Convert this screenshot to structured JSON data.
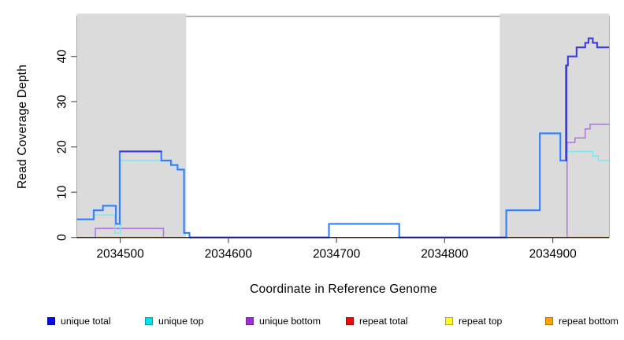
{
  "axes": {
    "x_label": "Coordinate in Reference Genome",
    "y_label": "Read Coverage Depth"
  },
  "chart_data": {
    "type": "line",
    "title": "",
    "xlabel": "Coordinate in Reference Genome",
    "ylabel": "Read Coverage Depth",
    "xlim": [
      2034460,
      2034952
    ],
    "ylim": [
      0,
      48
    ],
    "grid": false,
    "xticks": [
      2034500,
      2034600,
      2034700,
      2034800,
      2034900
    ],
    "yticks": [
      0,
      10,
      20,
      30,
      40
    ],
    "shade_color": "#DBDBDB",
    "shaded_regions": [
      {
        "from": 2034460,
        "to": 2034561
      },
      {
        "from": 2034851,
        "to": 2034952
      }
    ],
    "series": [
      {
        "name": "repeat top",
        "color": "#FFE81A",
        "width": 1.4,
        "xend": 2034952,
        "steps": [
          [
            2034460,
            0
          ]
        ]
      },
      {
        "name": "repeat total",
        "color": "#D84A63",
        "width": 1.4,
        "xend": 2034952,
        "steps": [
          [
            2034460,
            0
          ]
        ]
      },
      {
        "name": "repeat bottom",
        "color": "#FFA11C",
        "width": 1.6,
        "xend": 2034952,
        "steps": [
          [
            2034476,
            0
          ],
          [
            2034538,
            null
          ],
          [
            2034913,
            0
          ]
        ]
      },
      {
        "name": "unique bottom",
        "color": "#B173E3",
        "width": 1.5,
        "xend": 2034952,
        "steps": [
          [
            2034476,
            0
          ],
          [
            2034477,
            2
          ],
          [
            2034540,
            0
          ],
          [
            2034541,
            null
          ],
          [
            2034912.4,
            0
          ],
          [
            2034913.2,
            21
          ],
          [
            2034920.5,
            22
          ],
          [
            2034930,
            24
          ],
          [
            2034934.5,
            25
          ]
        ]
      },
      {
        "name": "unique top",
        "color": "#7FE6EF",
        "width": 1.5,
        "xend": 2034952,
        "steps": [
          [
            2034460,
            4
          ],
          [
            2034475.5,
            5
          ],
          [
            2034495,
            1
          ],
          [
            2034500,
            17
          ],
          [
            2034547,
            16
          ],
          [
            2034553,
            15
          ],
          [
            2034559,
            1
          ],
          [
            2034564,
            0
          ],
          [
            2034693,
            3
          ],
          [
            2034758,
            0
          ],
          [
            2034857,
            6
          ],
          [
            2034888,
            23
          ],
          [
            2034907,
            17
          ],
          [
            2034913,
            19
          ],
          [
            2034937,
            18
          ],
          [
            2034942,
            17
          ]
        ]
      },
      {
        "name": "unique total (with top overlap)",
        "color": "#2E7FFF",
        "width": 2.1,
        "xend": 2034912.7,
        "steps": [
          [
            2034460,
            4
          ],
          [
            2034475.5,
            6
          ],
          [
            2034484,
            7
          ],
          [
            2034496,
            3
          ],
          [
            2034499.5,
            19
          ],
          [
            2034538,
            17
          ],
          [
            2034547,
            16
          ],
          [
            2034553,
            15
          ],
          [
            2034559,
            1
          ],
          [
            2034564,
            0
          ],
          [
            2034565.5,
            null
          ],
          [
            2034692.3,
            0
          ],
          [
            2034693,
            3
          ],
          [
            2034758,
            0
          ],
          [
            2034759.5,
            null
          ],
          [
            2034856.3,
            0
          ],
          [
            2034857,
            6
          ],
          [
            2034888,
            23
          ],
          [
            2034907,
            17
          ],
          [
            2034912,
            38
          ]
        ]
      },
      {
        "name": "unique total",
        "color": "#3B3BDF",
        "width": 2.1,
        "xend": 2034952,
        "steps": [
          [
            2034499.5,
            19
          ],
          [
            2034538.5,
            null
          ],
          [
            2034564,
            0
          ],
          [
            2034692.5,
            null
          ],
          [
            2034758,
            0
          ],
          [
            2034856.5,
            null
          ],
          [
            2034912,
            17
          ],
          [
            2034912.7,
            38
          ],
          [
            2034914,
            40
          ],
          [
            2034922,
            42
          ],
          [
            2034930,
            43
          ],
          [
            2034933,
            44
          ],
          [
            2034937,
            43
          ],
          [
            2034941,
            42
          ]
        ]
      }
    ],
    "legend": [
      {
        "label": "unique total",
        "color": "#0909EE"
      },
      {
        "label": "unique top",
        "color": "#00E1EA"
      },
      {
        "label": "unique bottom",
        "color": "#9C2FD9"
      },
      {
        "label": "repeat total",
        "color": "#EE0A0A"
      },
      {
        "label": "repeat top",
        "color": "#FCF52E"
      },
      {
        "label": "repeat bottom",
        "color": "#FFA400"
      }
    ],
    "legend_position": "bottom"
  }
}
